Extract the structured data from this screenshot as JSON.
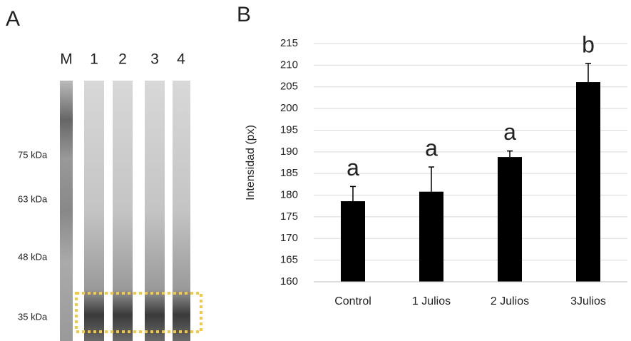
{
  "panel_labels": [
    "A",
    "B"
  ],
  "gel": {
    "lanes": [
      "M",
      "1",
      "2",
      "3",
      "4"
    ],
    "markers": [
      "75 kDa",
      "63 kDa",
      "48 kDa",
      "35 kDa"
    ]
  },
  "chart_data": {
    "type": "bar",
    "y_label": "Intensidad (px)",
    "categories": [
      "Control",
      "1 Julios",
      "2 Julios",
      "3Julios"
    ],
    "values": [
      178.6,
      180.8,
      188.8,
      206.1
    ],
    "errors": [
      3.4,
      5.7,
      1.4,
      4.3
    ],
    "annotations": [
      "a",
      "a",
      "a",
      "b"
    ],
    "color": "#000000",
    "ylim": [
      160,
      215
    ],
    "yticks": [
      160,
      165,
      170,
      175,
      180,
      185,
      190,
      195,
      200,
      205,
      210,
      215
    ],
    "grid": true
  }
}
